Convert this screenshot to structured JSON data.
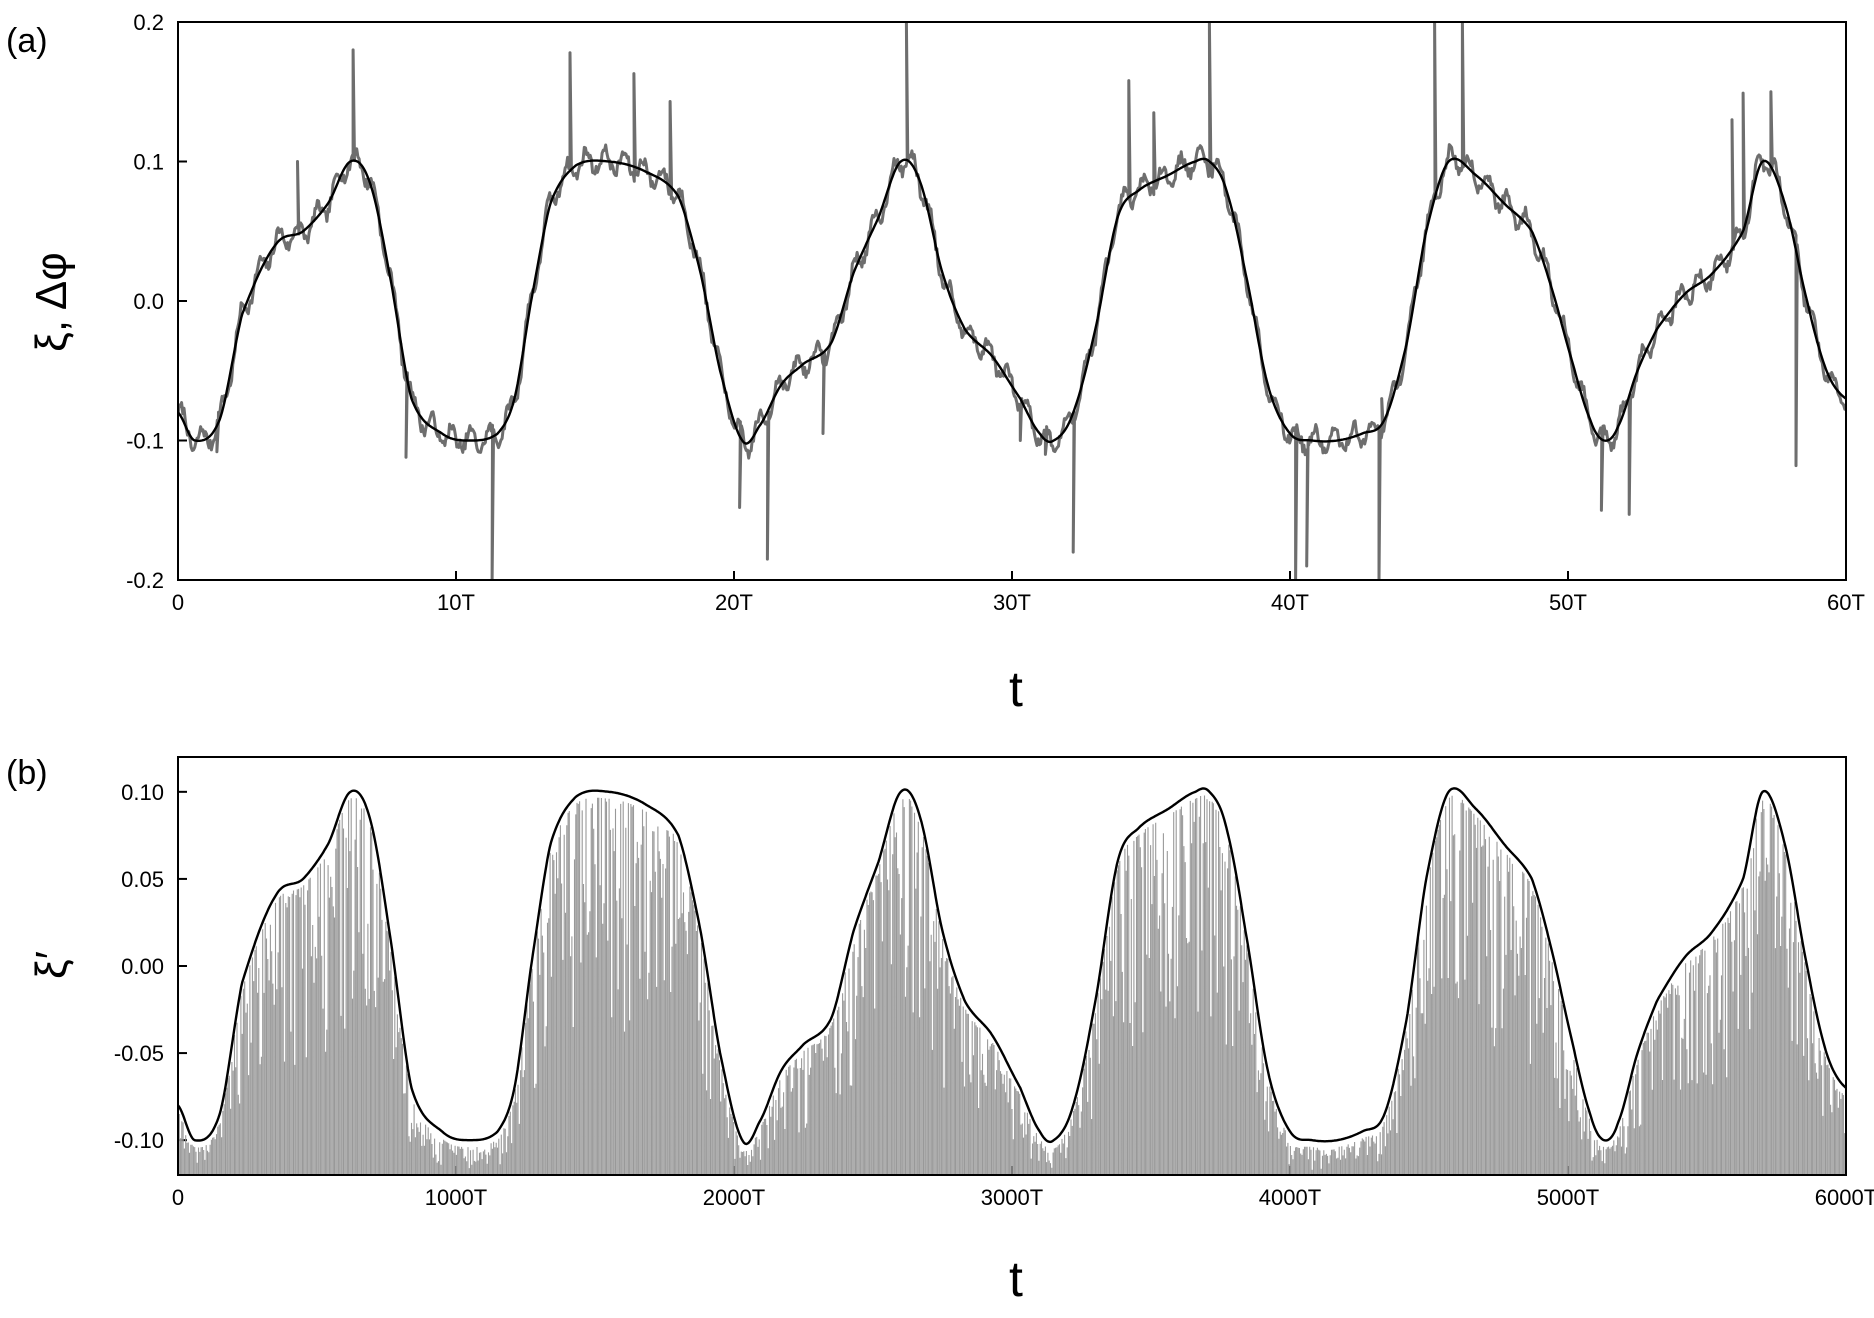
{
  "chart_data": [
    {
      "type": "line",
      "panel_label": "(a)",
      "xlabel": "t",
      "ylabel": "ξ, Δφ",
      "xlim": [
        0,
        60
      ],
      "ylim": [
        -0.2,
        0.2
      ],
      "x_ticks": [
        0,
        10,
        20,
        30,
        40,
        50,
        60
      ],
      "x_tick_labels": [
        "0",
        "10T",
        "20T",
        "30T",
        "40T",
        "50T",
        "60T"
      ],
      "y_ticks": [
        0.2,
        0.1,
        0.0,
        -0.1,
        -0.2
      ],
      "y_tick_labels": [
        "0.2",
        "0.1",
        "0.0",
        "-0.1",
        "-0.2"
      ],
      "grid": false,
      "colors": {
        "smooth": "#000000",
        "noisy": "#6e6e6e"
      },
      "series": [
        {
          "style": "smooth",
          "x": [
            0,
            0.6,
            1.5,
            2.3,
            3.5,
            4.5,
            5.4,
            6.2,
            6.9,
            7.6,
            8.4,
            9.5,
            10.5,
            11.5,
            12.1,
            12.7,
            13.4,
            14.3,
            15.5,
            16.8,
            18.0,
            18.8,
            19.5,
            20.3,
            20.9,
            21.7,
            22.5,
            23.5,
            24.3,
            25.2,
            26.0,
            26.7,
            27.5,
            28.3,
            29.3,
            30.3,
            31.0,
            31.5,
            32.2,
            33.0,
            33.8,
            34.6,
            35.6,
            36.6,
            37.1,
            37.7,
            38.4,
            39.2,
            40.0,
            40.8,
            41.7,
            42.6,
            43.4,
            44.2,
            44.9,
            45.7,
            46.7,
            47.7,
            48.7,
            49.4,
            50.1,
            50.8,
            51.3,
            51.8,
            52.5,
            53.2,
            54.2,
            55.2,
            56.3,
            57.0,
            57.8,
            58.6,
            59.3,
            60.0
          ],
          "y": [
            -0.08,
            -0.1,
            -0.085,
            -0.01,
            0.04,
            0.05,
            0.07,
            0.1,
            0.085,
            0.02,
            -0.07,
            -0.095,
            -0.1,
            -0.095,
            -0.07,
            0.0,
            0.07,
            0.097,
            0.1,
            0.093,
            0.075,
            0.02,
            -0.05,
            -0.1,
            -0.09,
            -0.06,
            -0.045,
            -0.03,
            0.02,
            0.06,
            0.1,
            0.085,
            0.02,
            -0.02,
            -0.04,
            -0.07,
            -0.095,
            -0.1,
            -0.08,
            -0.02,
            0.06,
            0.08,
            0.09,
            0.1,
            0.1,
            0.08,
            0.02,
            -0.06,
            -0.095,
            -0.1,
            -0.1,
            -0.095,
            -0.085,
            -0.03,
            0.05,
            0.1,
            0.09,
            0.07,
            0.05,
            0.01,
            -0.04,
            -0.085,
            -0.1,
            -0.09,
            -0.05,
            -0.02,
            0.005,
            0.02,
            0.05,
            0.1,
            0.07,
            0.0,
            -0.05,
            -0.07
          ]
        },
        {
          "style": "noisy",
          "spikes": [
            [
              1.4,
              -0.108
            ],
            [
              4.3,
              0.1
            ],
            [
              6.3,
              0.18
            ],
            [
              8.2,
              -0.112
            ],
            [
              10.1,
              -0.105
            ],
            [
              11.3,
              -0.2
            ],
            [
              14.1,
              0.178
            ],
            [
              16.4,
              0.163
            ],
            [
              17.7,
              0.143
            ],
            [
              20.2,
              -0.148
            ],
            [
              21.2,
              -0.185
            ],
            [
              23.2,
              -0.095
            ],
            [
              26.2,
              0.2
            ],
            [
              30.3,
              -0.1
            ],
            [
              31.2,
              -0.11
            ],
            [
              32.2,
              -0.18
            ],
            [
              34.2,
              0.158
            ],
            [
              35.1,
              0.135
            ],
            [
              37.1,
              0.2
            ],
            [
              40.2,
              -0.2
            ],
            [
              40.6,
              -0.19
            ],
            [
              43.2,
              -0.2
            ],
            [
              43.3,
              -0.07
            ],
            [
              45.2,
              0.2
            ],
            [
              46.2,
              0.2
            ],
            [
              48.3,
              0.06
            ],
            [
              51.2,
              -0.15
            ],
            [
              52.2,
              -0.153
            ],
            [
              55.9,
              0.13
            ],
            [
              56.3,
              0.149
            ],
            [
              57.3,
              0.15
            ],
            [
              58.2,
              -0.118
            ]
          ]
        }
      ]
    },
    {
      "type": "area",
      "panel_label": "(b)",
      "xlabel": "t",
      "ylabel": "ξ′",
      "xlim": [
        0,
        6000
      ],
      "ylim": [
        -0.12,
        0.12
      ],
      "x_ticks": [
        0,
        1000,
        2000,
        3000,
        4000,
        5000,
        6000
      ],
      "x_tick_labels": [
        "0",
        "1000T",
        "2000T",
        "3000T",
        "4000T",
        "5000T",
        "6000T"
      ],
      "y_ticks": [
        0.1,
        0.05,
        0.0,
        -0.05,
        -0.1
      ],
      "y_tick_labels": [
        "0.10",
        "0.05",
        "0.00",
        "-0.05",
        "-0.10"
      ],
      "grid": false,
      "colors": {
        "envelope": "#000000",
        "fill": "#999999"
      },
      "series": [
        {
          "style": "envelope",
          "x": [
            0,
            60,
            150,
            230,
            350,
            450,
            540,
            620,
            690,
            760,
            840,
            950,
            1050,
            1150,
            1210,
            1270,
            1340,
            1430,
            1550,
            1680,
            1800,
            1880,
            1950,
            2030,
            2090,
            2170,
            2250,
            2350,
            2430,
            2520,
            2600,
            2670,
            2750,
            2830,
            2930,
            3030,
            3100,
            3150,
            3220,
            3300,
            3380,
            3460,
            3560,
            3660,
            3710,
            3770,
            3840,
            3920,
            4000,
            4080,
            4170,
            4260,
            4340,
            4420,
            4490,
            4570,
            4670,
            4770,
            4870,
            4940,
            5010,
            5080,
            5130,
            5180,
            5250,
            5320,
            5420,
            5520,
            5630,
            5700,
            5780,
            5860,
            5930,
            6000
          ],
          "y": [
            -0.08,
            -0.1,
            -0.085,
            -0.01,
            0.04,
            0.05,
            0.07,
            0.1,
            0.085,
            0.02,
            -0.07,
            -0.095,
            -0.1,
            -0.095,
            -0.07,
            0.0,
            0.07,
            0.097,
            0.1,
            0.093,
            0.075,
            0.02,
            -0.05,
            -0.1,
            -0.09,
            -0.06,
            -0.045,
            -0.03,
            0.02,
            0.06,
            0.1,
            0.085,
            0.02,
            -0.02,
            -0.04,
            -0.07,
            -0.095,
            -0.1,
            -0.08,
            -0.02,
            0.06,
            0.08,
            0.09,
            0.1,
            0.1,
            0.08,
            0.02,
            -0.06,
            -0.095,
            -0.1,
            -0.1,
            -0.095,
            -0.085,
            -0.03,
            0.05,
            0.1,
            0.09,
            0.07,
            0.05,
            0.01,
            -0.04,
            -0.085,
            -0.1,
            -0.09,
            -0.05,
            -0.02,
            0.005,
            0.02,
            0.05,
            0.1,
            0.07,
            0.0,
            -0.05,
            -0.07
          ]
        }
      ]
    }
  ]
}
